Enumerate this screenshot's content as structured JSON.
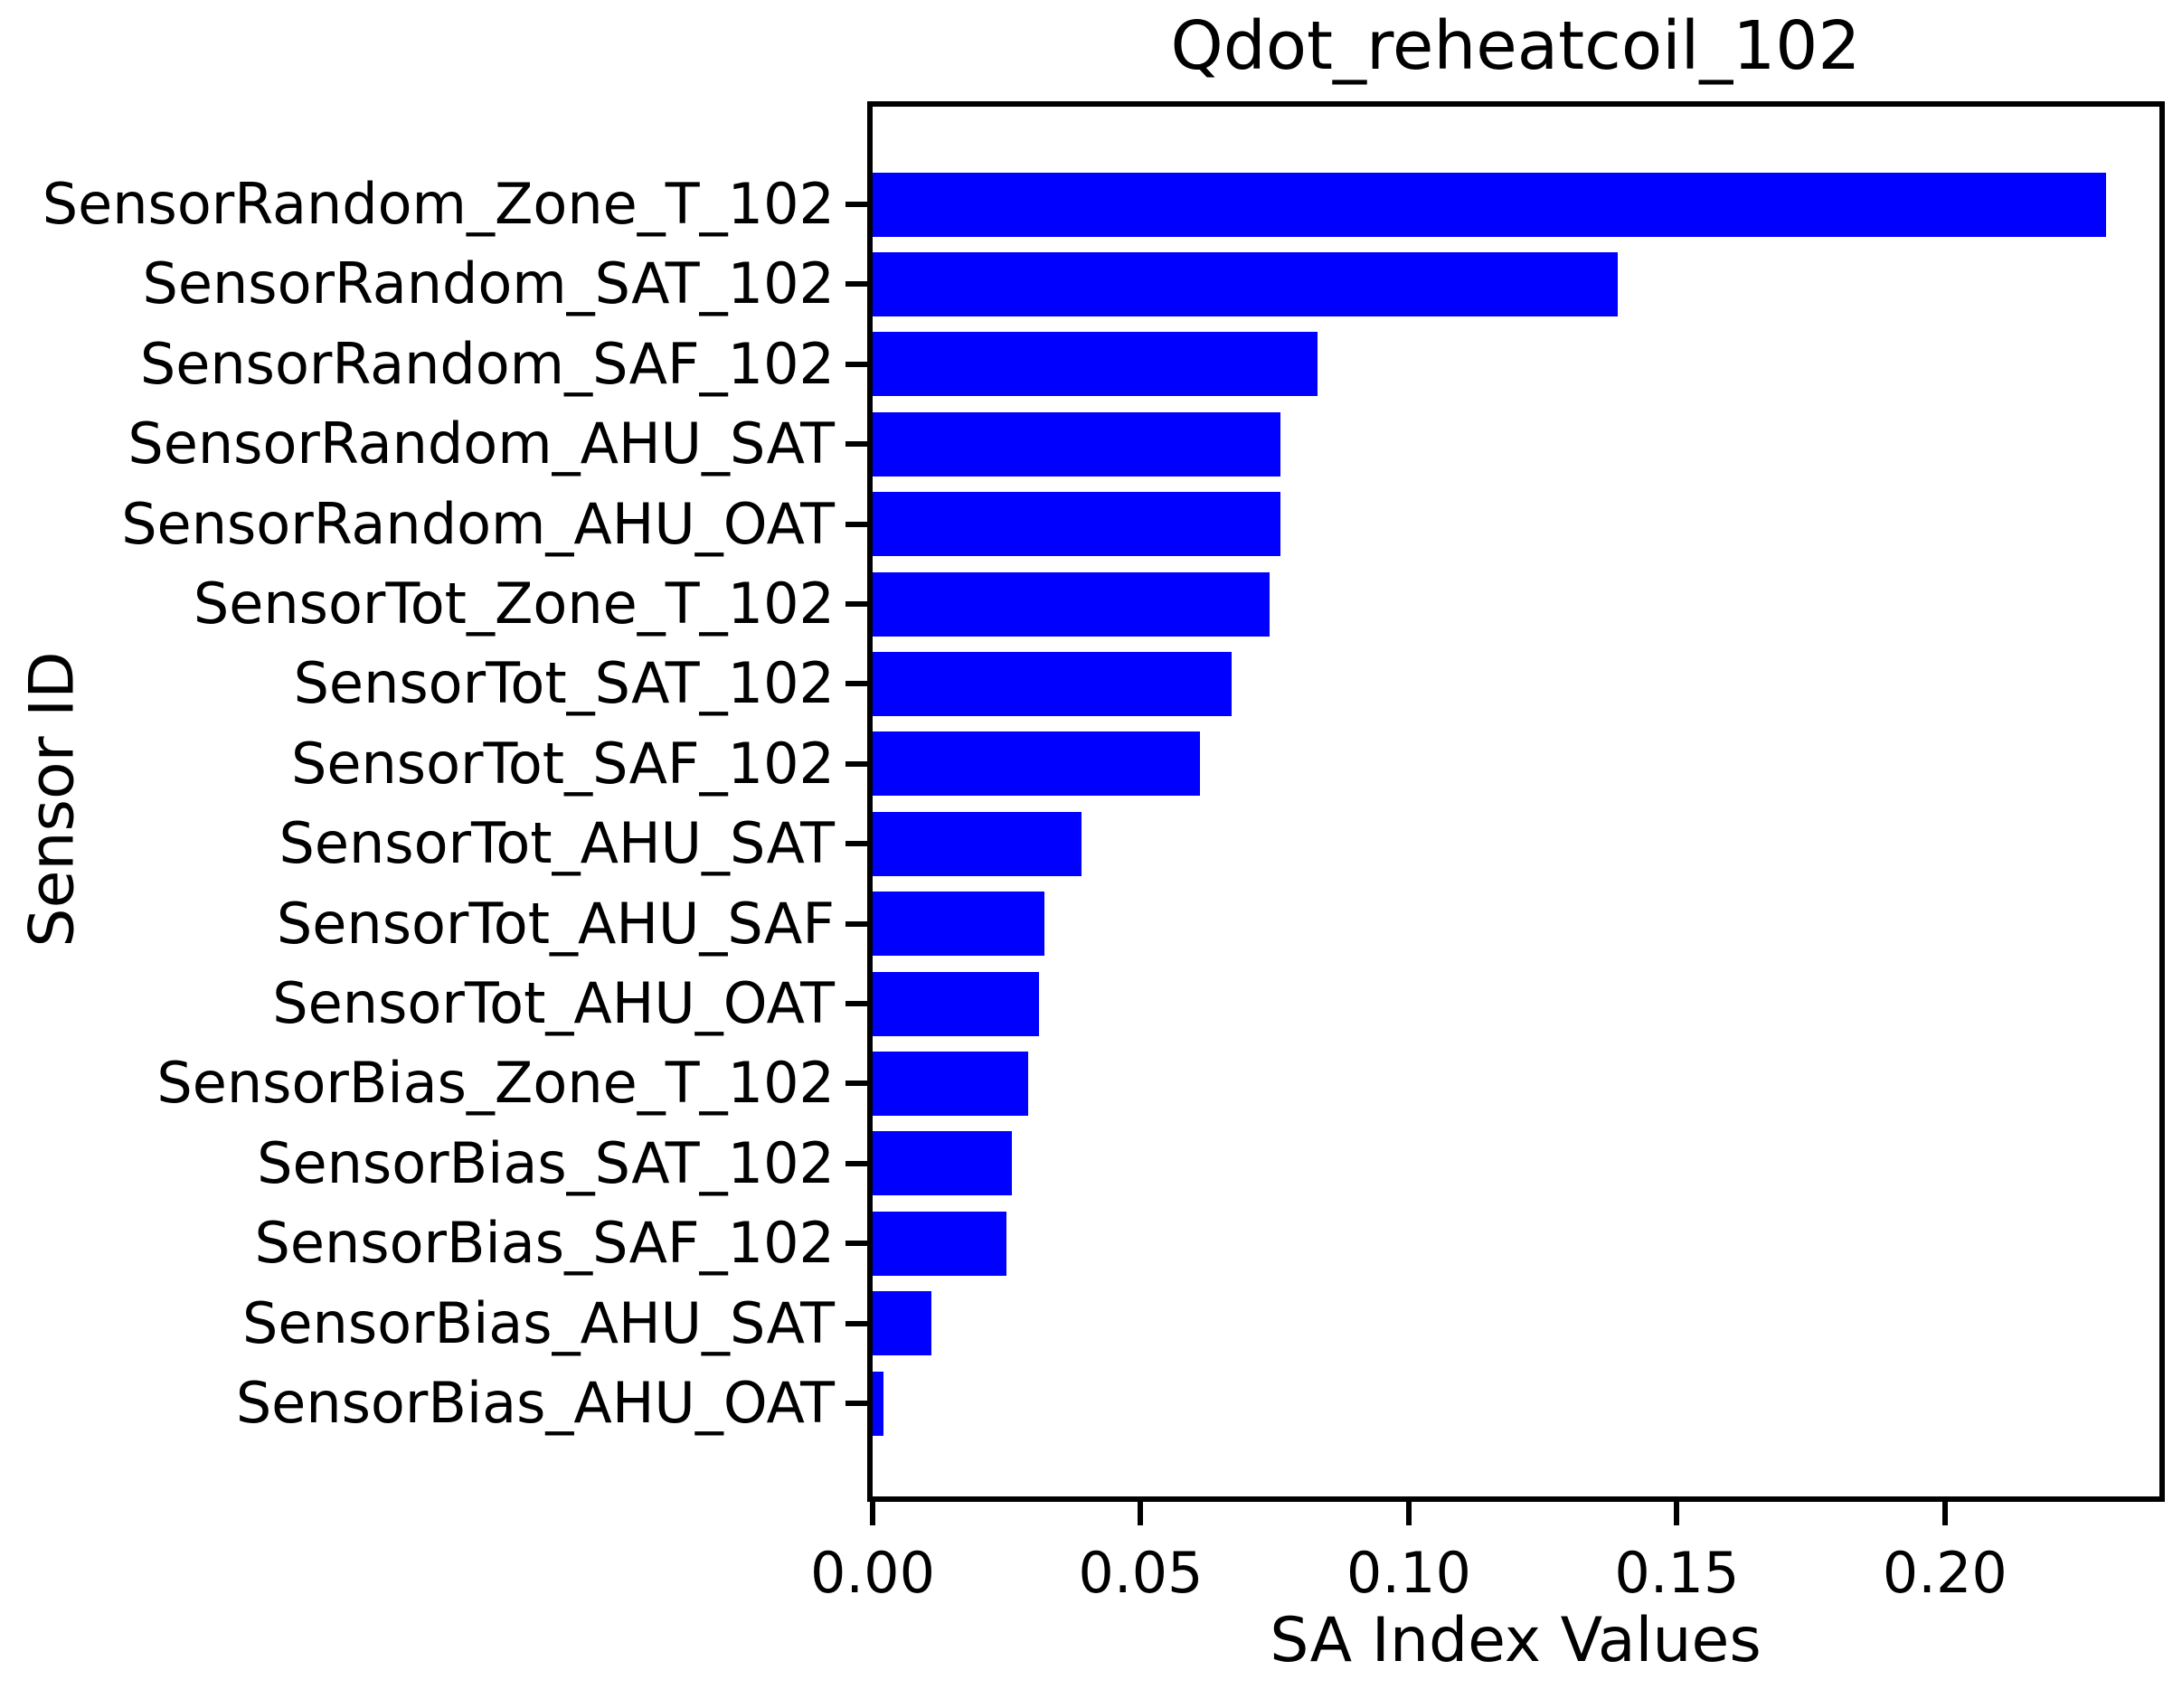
{
  "chart_data": {
    "type": "bar",
    "orientation": "horizontal",
    "title": "Qdot_reheatcoil_102",
    "xlabel": "SA Index Values",
    "ylabel": "Sensor ID",
    "categories": [
      "SensorRandom_Zone_T_102",
      "SensorRandom_SAT_102",
      "SensorRandom_SAF_102",
      "SensorRandom_AHU_SAT",
      "SensorRandom_AHU_OAT",
      "SensorTot_Zone_T_102",
      "SensorTot_SAT_102",
      "SensorTot_SAF_102",
      "SensorTot_AHU_SAT",
      "SensorTot_AHU_SAF",
      "SensorTot_AHU_OAT",
      "SensorBias_Zone_T_102",
      "SensorBias_SAT_102",
      "SensorBias_SAF_102",
      "SensorBias_AHU_SAT",
      "SensorBias_AHU_OAT"
    ],
    "values": [
      0.23,
      0.139,
      0.083,
      0.076,
      0.076,
      0.074,
      0.067,
      0.061,
      0.039,
      0.032,
      0.031,
      0.029,
      0.026,
      0.025,
      0.011,
      0.002
    ],
    "xlim": [
      0,
      0.24
    ],
    "xticks": [
      0,
      0.05,
      0.1,
      0.15,
      0.2
    ],
    "xtick_labels": [
      "0.00",
      "0.05",
      "0.10",
      "0.15",
      "0.20"
    ],
    "bar_color": "#0000ff",
    "axis_color": "#000000",
    "background_color": "#ffffff",
    "grid": false,
    "legend": false
  }
}
